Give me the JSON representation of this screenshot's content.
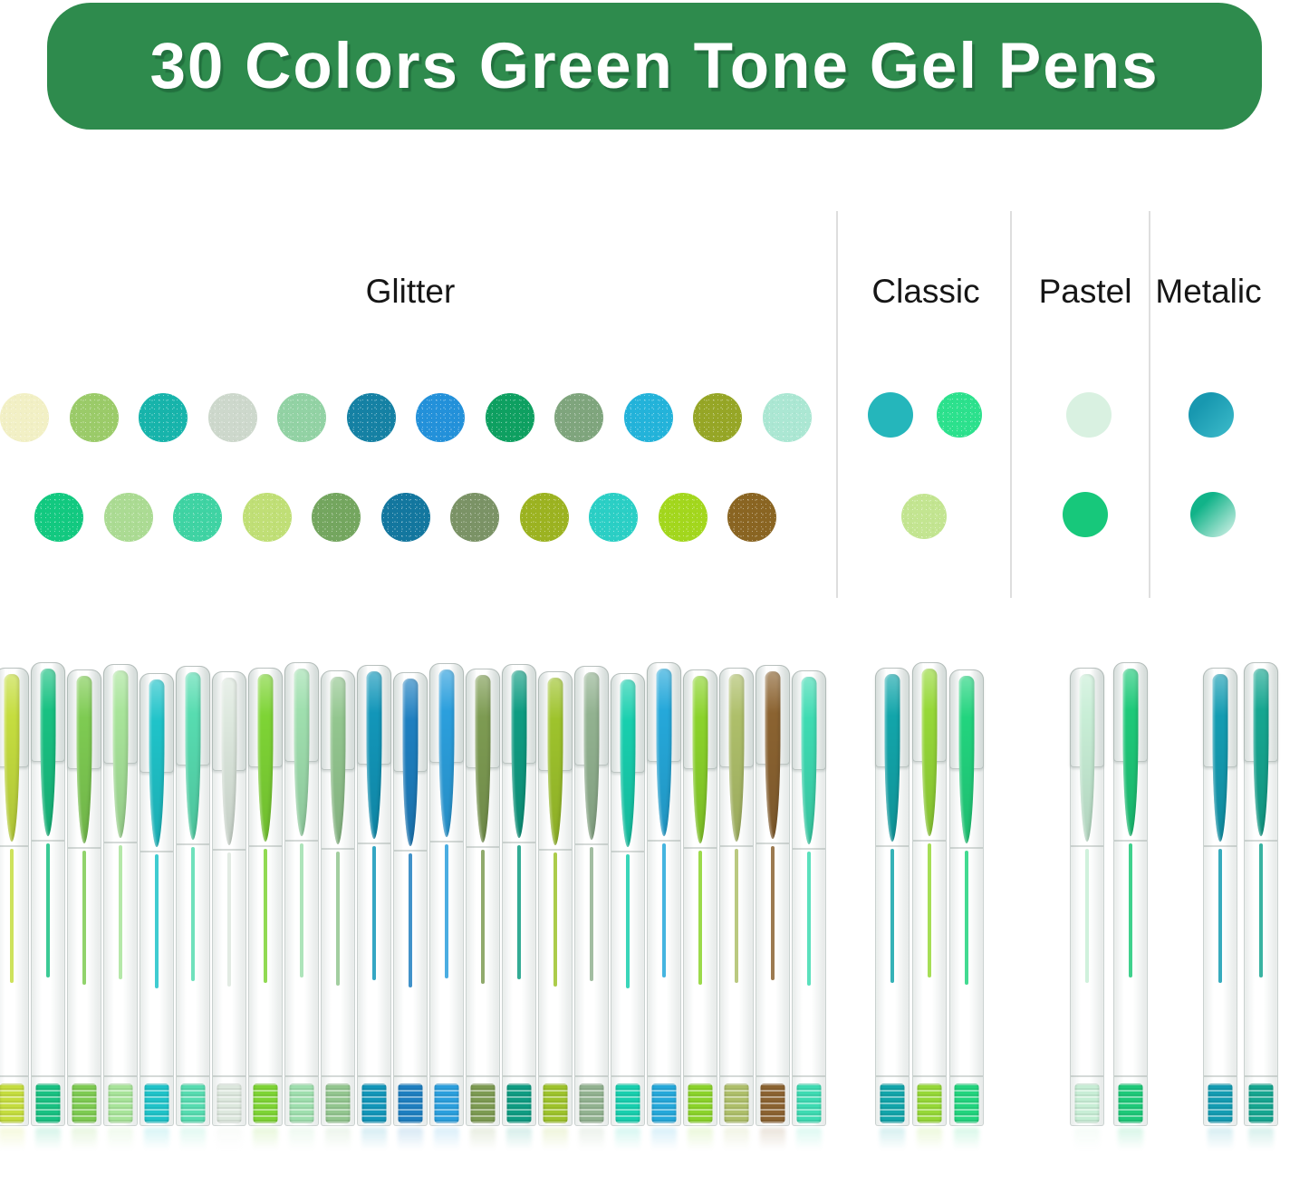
{
  "title": "30 Colors Green Tone Gel Pens",
  "theme": {
    "banner_green": "#2e8b4d",
    "divider_gray": "#dedede",
    "label_color": "#161616"
  },
  "categories": {
    "glitter": {
      "label": "Glitter"
    },
    "classic": {
      "label": "Classic"
    },
    "pastel": {
      "label": "Pastel"
    },
    "metalic": {
      "label": "Metalic"
    }
  },
  "swatches": {
    "glitter_row1": [
      {
        "color": "#f2f0c5",
        "texture": "glitter"
      },
      {
        "color": "#9bcb69",
        "texture": "glitter"
      },
      {
        "color": "#17b4ab",
        "texture": "glitter"
      },
      {
        "color": "#cdd8cc",
        "texture": "glitter"
      },
      {
        "color": "#92d2a4",
        "texture": "glitter"
      },
      {
        "color": "#1581a4",
        "texture": "glitter"
      },
      {
        "color": "#2391da",
        "texture": "glitter"
      },
      {
        "color": "#0ea061",
        "texture": "glitter"
      },
      {
        "color": "#7fa57d",
        "texture": "glitter"
      },
      {
        "color": "#23b3da",
        "texture": "glitter"
      },
      {
        "color": "#96a626",
        "texture": "glitter"
      },
      {
        "color": "#abe7d3",
        "texture": "glitter"
      }
    ],
    "glitter_row2": [
      {
        "color": "#12c980",
        "texture": "glitter"
      },
      {
        "color": "#abdb93",
        "texture": "glitter"
      },
      {
        "color": "#3fd3a3",
        "texture": "glitter"
      },
      {
        "color": "#c0df76",
        "texture": "glitter"
      },
      {
        "color": "#74a65f",
        "texture": "glitter"
      },
      {
        "color": "#13779f",
        "texture": "glitter"
      },
      {
        "color": "#7b9366",
        "texture": "glitter"
      },
      {
        "color": "#9cb321",
        "texture": "glitter"
      },
      {
        "color": "#2bcfc5",
        "texture": "glitter"
      },
      {
        "color": "#a3d71d",
        "texture": "glitter"
      },
      {
        "color": "#8a6522",
        "texture": "glitter"
      }
    ],
    "classic_row1": [
      {
        "color": "#25b6bb",
        "texture": "solid"
      },
      {
        "color": "#2ce18d",
        "texture": "glitter"
      }
    ],
    "classic_row2": [
      {
        "color": "#c3e591",
        "texture": "glitter"
      }
    ],
    "pastel_row1": [
      {
        "color": "#d9f1e1",
        "texture": "solid"
      }
    ],
    "pastel_row2": [
      {
        "color": "#17c87b",
        "texture": "solid"
      }
    ],
    "metalic_row1": [
      {
        "color": "#1898b0",
        "texture": "metallic",
        "color2": "#3ebccb"
      }
    ],
    "metalic_row2": [
      {
        "color": "#11b389",
        "texture": "metallic",
        "color2": "#ddf4ec"
      }
    ]
  },
  "pens": {
    "glitter": [
      "#c5dd3f",
      "#19c182",
      "#7ecb52",
      "#a8e49a",
      "#1fc3c9",
      "#57dcb0",
      "#dde8de",
      "#7ed435",
      "#9fdfae",
      "#93c68f",
      "#1296b9",
      "#1e7fc0",
      "#2b9fdd",
      "#7d9b52",
      "#0f9c82",
      "#9ec32c",
      "#92b290",
      "#18cfae",
      "#25a8da",
      "#8bd32b",
      "#aebf6a",
      "#8b6331",
      "#3edbb2"
    ],
    "classic": [
      "#12a5aa",
      "#96d838",
      "#22d47e"
    ],
    "pastel": [
      "#c8eed6",
      "#1ec979"
    ],
    "metalic": [
      "#149cb2",
      "#16a690"
    ]
  }
}
